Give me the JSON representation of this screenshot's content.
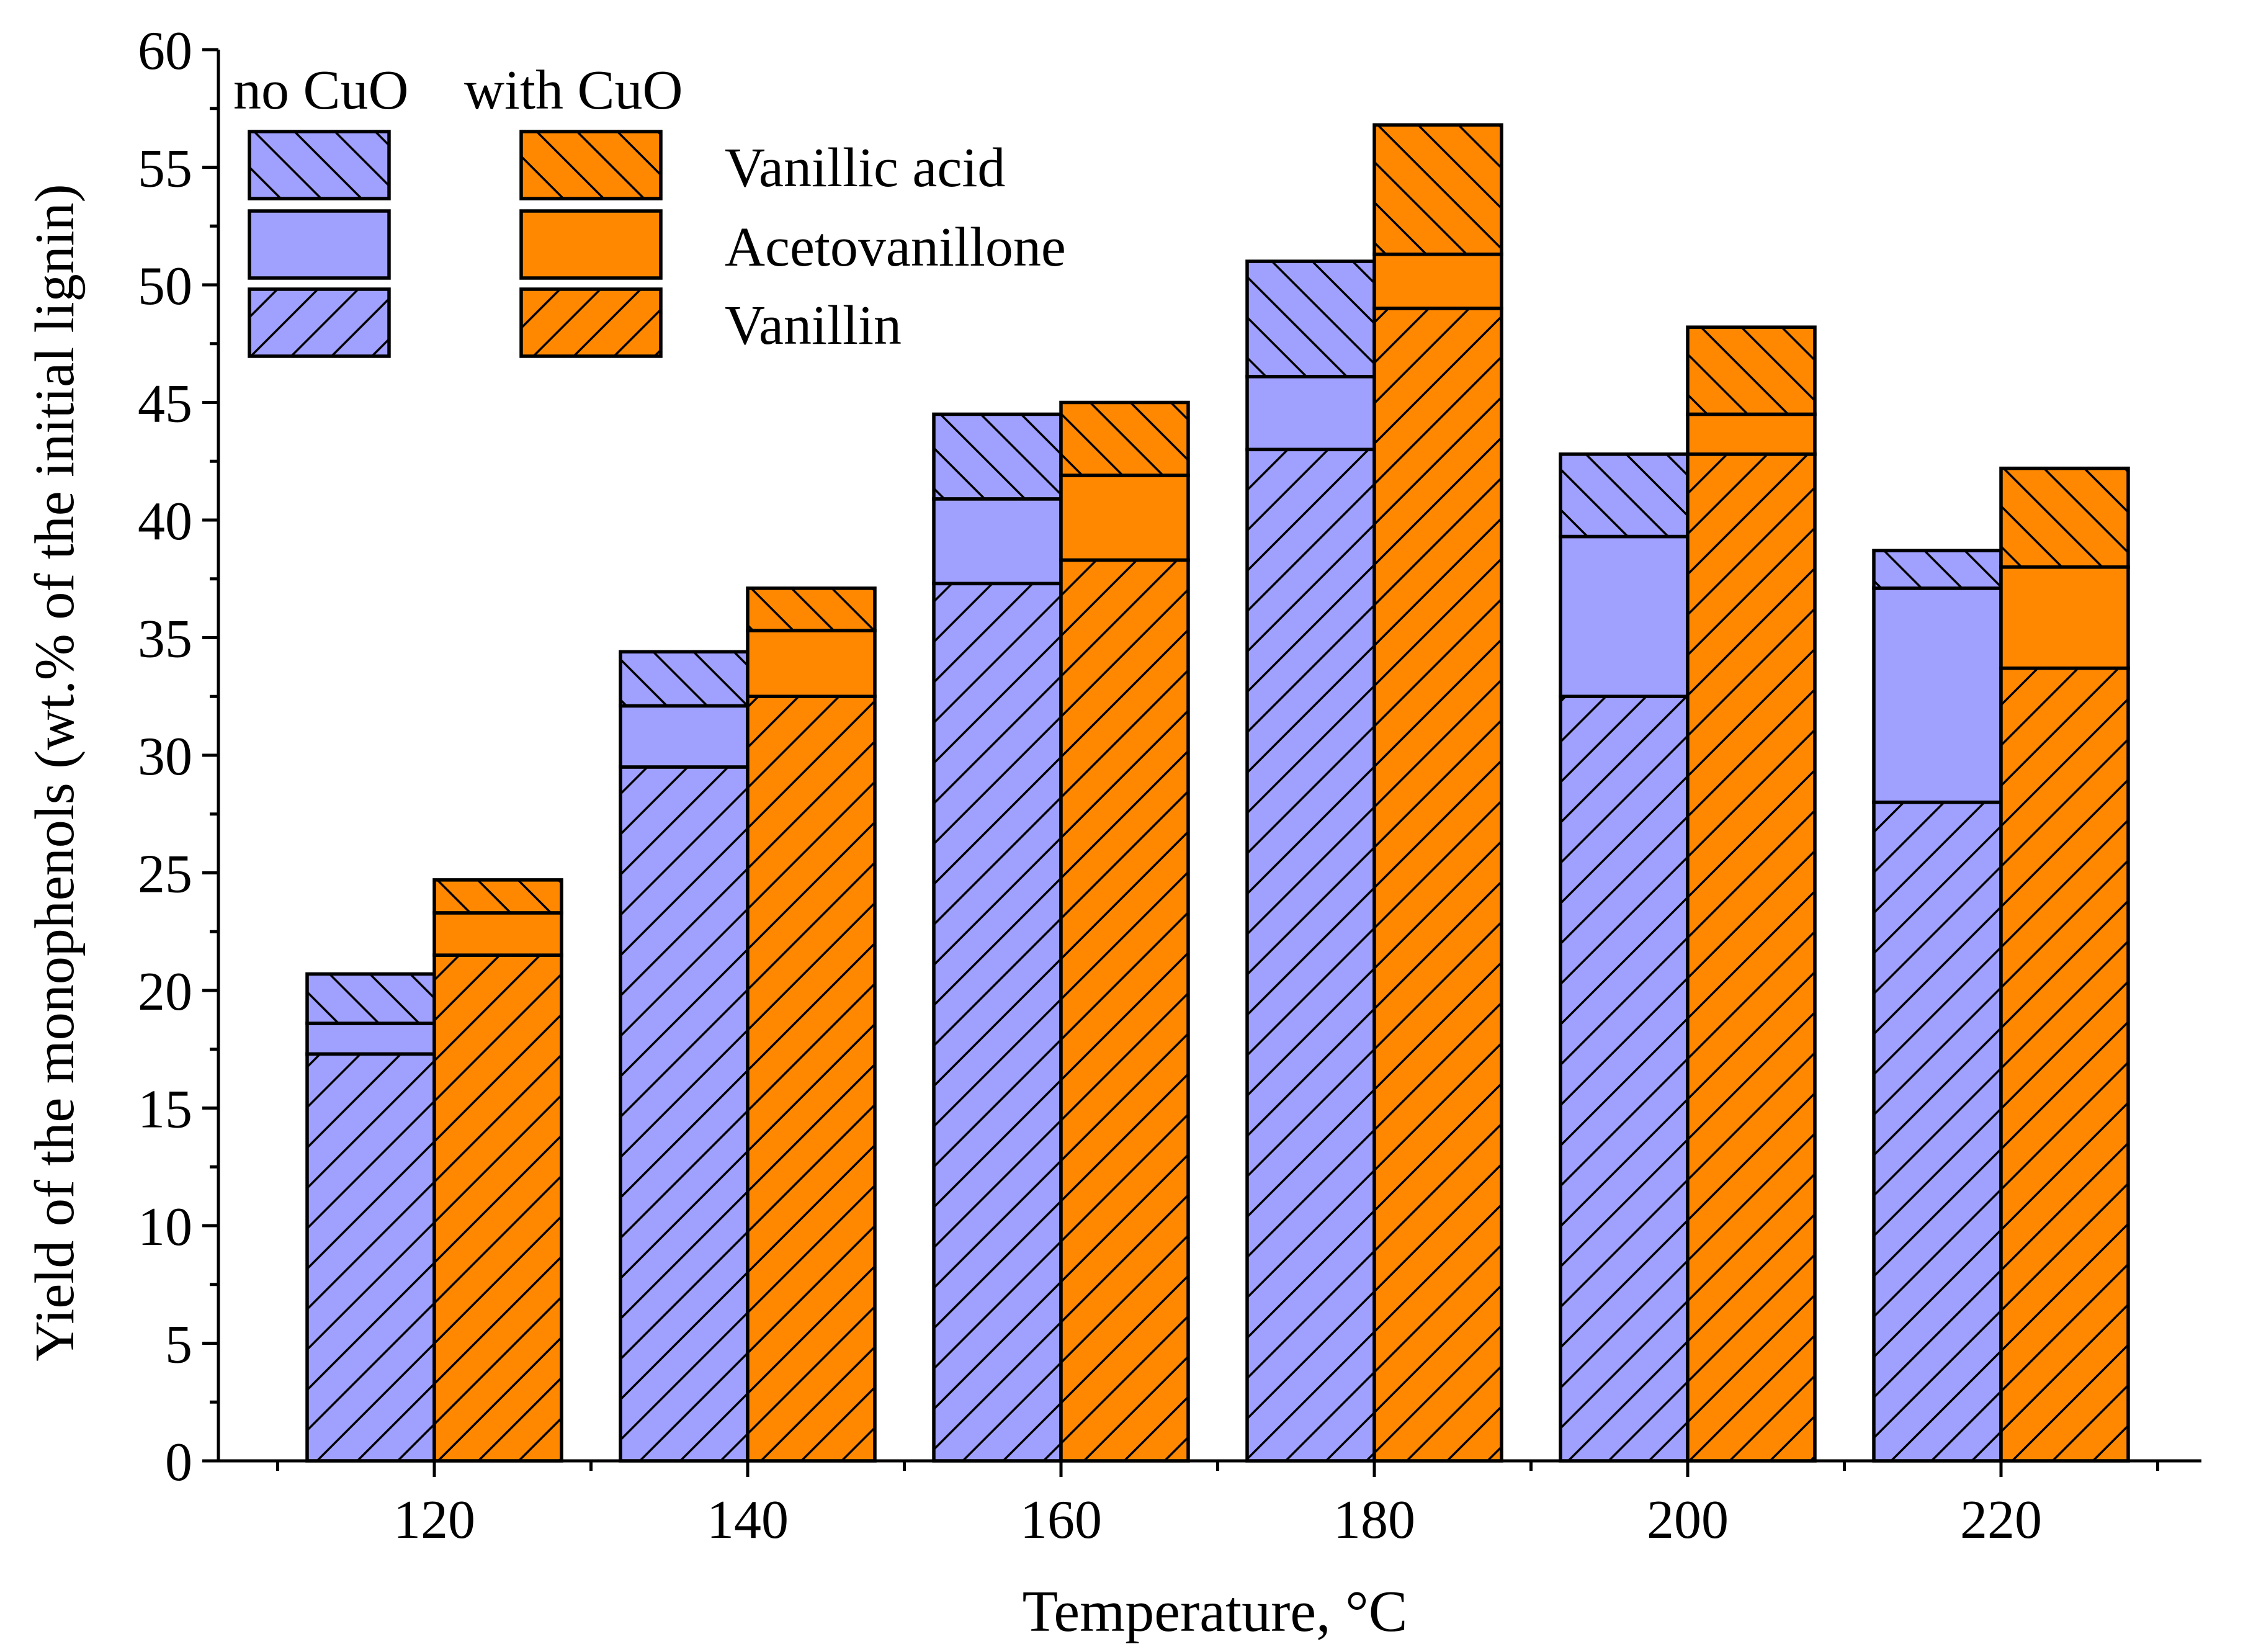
{
  "chart_data": {
    "type": "bar",
    "stacked": true,
    "grouped": true,
    "xlabel": "Temperature, °C",
    "ylabel": "Yield of the monophenols (wt.% of the initial lignin)",
    "ylim": [
      0,
      60
    ],
    "yticks": [
      0,
      5,
      10,
      15,
      20,
      25,
      30,
      35,
      40,
      45,
      50,
      55,
      60
    ],
    "categories": [
      "120",
      "140",
      "160",
      "180",
      "200",
      "220"
    ],
    "groups": [
      {
        "name": "no CuO",
        "color": "#a0a0ff",
        "stacks": [
          {
            "series": "Vanillin",
            "values": [
              17.3,
              29.5,
              37.3,
              43.0,
              32.5,
              28.0
            ]
          },
          {
            "series": "Acetovanillone",
            "values": [
              1.3,
              2.6,
              3.6,
              3.1,
              6.8,
              9.1
            ]
          },
          {
            "series": "Vanillic acid",
            "values": [
              2.1,
              2.3,
              3.6,
              4.9,
              3.5,
              1.6
            ]
          }
        ]
      },
      {
        "name": "with CuO",
        "color": "#ff8800",
        "stacks": [
          {
            "series": "Vanillin",
            "values": [
              21.5,
              32.5,
              38.3,
              49.0,
              42.8,
              33.7
            ]
          },
          {
            "series": "Acetovanillone",
            "values": [
              1.8,
              2.8,
              3.6,
              2.3,
              1.7,
              4.3
            ]
          },
          {
            "series": "Vanillic acid",
            "values": [
              1.4,
              1.8,
              3.1,
              5.5,
              3.7,
              4.2
            ]
          }
        ]
      }
    ],
    "series_patterns": {
      "Vanillin": "hatch-forward",
      "Acetovanillone": "solid",
      "Vanillic acid": "hatch-back"
    },
    "legend": {
      "placement": "top-left",
      "column_headers": [
        "no CuO",
        "with CuO"
      ],
      "entries": [
        "Vanillic acid",
        "Acetovanillone",
        "Vanillin"
      ]
    }
  }
}
